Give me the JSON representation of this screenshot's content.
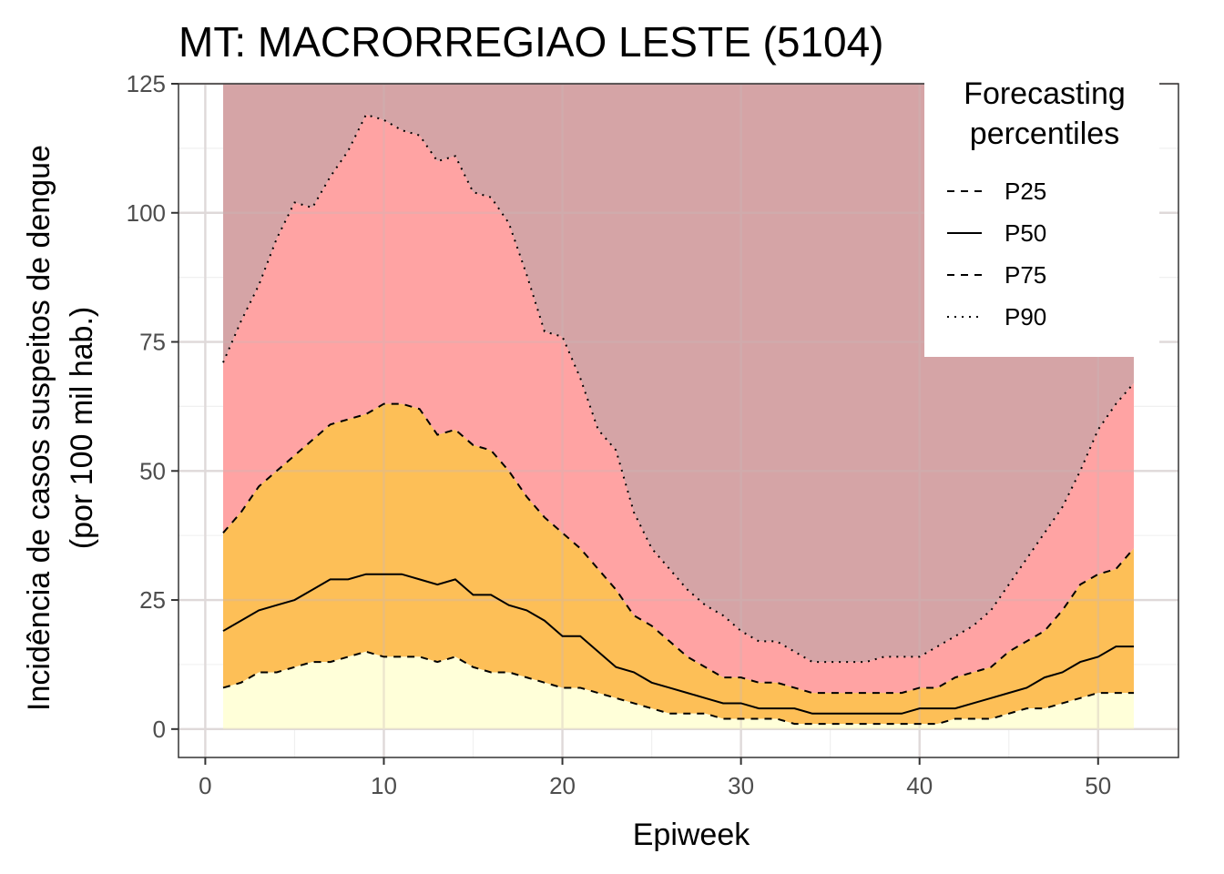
{
  "chart_data": {
    "type": "area",
    "title": "MT: MACRORREGIAO LESTE (5104)",
    "xlabel": "Epiweek",
    "ylabel_line1": "Incidência de casos suspeitos de dengue",
    "ylabel_line2": "(por 100 mil hab.)",
    "xlim": [
      -1.5,
      54.5
    ],
    "ylim": [
      -5.5,
      125
    ],
    "x_ticks": [
      0,
      10,
      20,
      30,
      40,
      50
    ],
    "y_ticks": [
      0,
      25,
      50,
      75,
      100,
      125
    ],
    "grid": true,
    "legend": {
      "title_line1": "Forecasting",
      "title_line2": "percentiles",
      "placement": "top-right",
      "entries": [
        {
          "label": "P25",
          "dash": "dashed"
        },
        {
          "label": "P50",
          "dash": "solid"
        },
        {
          "label": "P75",
          "dash": "dashed"
        },
        {
          "label": "P90",
          "dash": "dotted"
        }
      ]
    },
    "band_colors": {
      "below_p25": "#ffffd9",
      "p25_p75": "#fdbf57",
      "p75_p90": "#ffa3a3",
      "above_p90": "#d5a4a6"
    },
    "x": [
      1,
      2,
      3,
      4,
      5,
      6,
      7,
      8,
      9,
      10,
      11,
      12,
      13,
      14,
      15,
      16,
      17,
      18,
      19,
      20,
      21,
      22,
      23,
      24,
      25,
      26,
      27,
      28,
      29,
      30,
      31,
      32,
      33,
      34,
      35,
      36,
      37,
      38,
      39,
      40,
      41,
      42,
      43,
      44,
      45,
      46,
      47,
      48,
      49,
      50,
      51,
      52
    ],
    "series": [
      {
        "name": "P25",
        "values": [
          8,
          9,
          11,
          11,
          12,
          13,
          13,
          14,
          15,
          14,
          14,
          14,
          13,
          14,
          12,
          11,
          11,
          10,
          9,
          8,
          8,
          7,
          6,
          5,
          4,
          3,
          3,
          3,
          2,
          2,
          2,
          2,
          1,
          1,
          1,
          1,
          1,
          1,
          1,
          1,
          1,
          2,
          2,
          2,
          3,
          4,
          4,
          5,
          6,
          7,
          7,
          7
        ]
      },
      {
        "name": "P50",
        "values": [
          19,
          21,
          23,
          24,
          25,
          27,
          29,
          29,
          30,
          30,
          30,
          29,
          28,
          29,
          26,
          26,
          24,
          23,
          21,
          18,
          18,
          15,
          12,
          11,
          9,
          8,
          7,
          6,
          5,
          5,
          4,
          4,
          4,
          3,
          3,
          3,
          3,
          3,
          3,
          4,
          4,
          4,
          5,
          6,
          7,
          8,
          10,
          11,
          13,
          14,
          16,
          16
        ]
      },
      {
        "name": "P75",
        "values": [
          38,
          42,
          47,
          50,
          53,
          56,
          59,
          60,
          61,
          63,
          63,
          62,
          57,
          58,
          55,
          54,
          50,
          45,
          41,
          38,
          35,
          31,
          27,
          22,
          20,
          17,
          14,
          12,
          10,
          10,
          9,
          9,
          8,
          7,
          7,
          7,
          7,
          7,
          7,
          8,
          8,
          10,
          11,
          12,
          15,
          17,
          19,
          23,
          28,
          30,
          31,
          35
        ]
      },
      {
        "name": "P90",
        "values": [
          71,
          79,
          86,
          95,
          102,
          101,
          107,
          112,
          119,
          118,
          116,
          115,
          110,
          111,
          104,
          103,
          98,
          88,
          77,
          76,
          68,
          58,
          54,
          42,
          35,
          31,
          27,
          24,
          22,
          19,
          17,
          17,
          15,
          13,
          13,
          13,
          13,
          14,
          14,
          14,
          16,
          18,
          20,
          23,
          28,
          33,
          38,
          43,
          50,
          58,
          63,
          67
        ]
      }
    ]
  }
}
